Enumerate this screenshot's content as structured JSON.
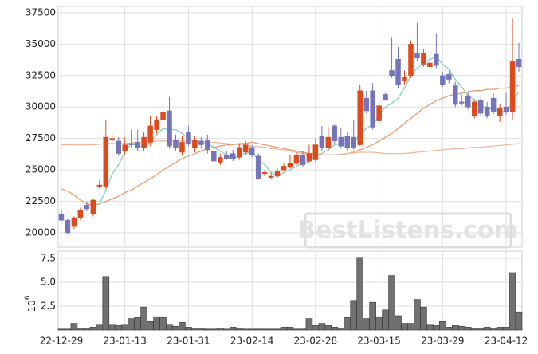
{
  "chart_data": {
    "type": "candlestick",
    "categories": [
      "22-12-29",
      null,
      null,
      null,
      null,
      null,
      null,
      null,
      null,
      null,
      "23-01-13",
      null,
      null,
      null,
      null,
      null,
      null,
      null,
      null,
      null,
      "23-01-31",
      null,
      null,
      null,
      null,
      null,
      null,
      null,
      null,
      null,
      "23-02-14",
      null,
      null,
      null,
      null,
      null,
      null,
      null,
      null,
      null,
      "23-02-28",
      null,
      null,
      null,
      null,
      null,
      null,
      null,
      null,
      null,
      "23-03-15",
      null,
      null,
      null,
      null,
      null,
      null,
      null,
      null,
      null,
      "23-03-29",
      null,
      null,
      null,
      null,
      null,
      null,
      null,
      null,
      null,
      "23-04-12",
      null,
      null
    ],
    "open": [
      21500,
      21000,
      20500,
      21200,
      22200,
      21500,
      23700,
      23700,
      27400,
      27300,
      26500,
      27100,
      27200,
      26800,
      27200,
      28200,
      29000,
      29700,
      27400,
      26400,
      28000,
      26800,
      27300,
      27400,
      26500,
      25600,
      26200,
      26300,
      26000,
      26400,
      26800,
      26100,
      24700,
      24400,
      24500,
      25000,
      25200,
      25500,
      26200,
      25700,
      25800,
      27700,
      26800,
      28500,
      27600,
      27700,
      27600,
      27000,
      30700,
      31300,
      28900,
      31000,
      32900,
      33800,
      32100,
      32500,
      34300,
      33400,
      33200,
      34200,
      32500,
      32600,
      31700,
      30400,
      30900,
      29300,
      30500,
      30000,
      30700,
      29300,
      30000,
      29600,
      33800
    ],
    "high": [
      21800,
      21100,
      21300,
      22000,
      22500,
      22700,
      24200,
      29000,
      27800,
      27600,
      27600,
      28200,
      28200,
      28000,
      29300,
      29300,
      30300,
      30800,
      27800,
      27700,
      28500,
      27700,
      27600,
      27800,
      26700,
      26300,
      26500,
      26600,
      27100,
      27300,
      27000,
      26300,
      25000,
      24800,
      25100,
      25500,
      26200,
      26400,
      26500,
      27000,
      27500,
      28500,
      28400,
      28600,
      28300,
      28000,
      29000,
      31800,
      31300,
      31900,
      30500,
      31100,
      35500,
      34800,
      32900,
      35300,
      36700,
      34600,
      34200,
      35800,
      32800,
      32900,
      32000,
      31000,
      31200,
      30600,
      30800,
      30400,
      31100,
      30200,
      31100,
      37100,
      35100
    ],
    "low": [
      20900,
      19900,
      20300,
      21000,
      21700,
      21300,
      23500,
      23500,
      27200,
      26100,
      26200,
      26800,
      26500,
      26500,
      26900,
      27900,
      28600,
      26700,
      26500,
      26200,
      26900,
      26400,
      26700,
      26300,
      25600,
      25400,
      25800,
      25700,
      25800,
      26200,
      26000,
      24200,
      24500,
      24300,
      24400,
      24900,
      25100,
      25400,
      25200,
      25500,
      25600,
      26500,
      26500,
      27100,
      26700,
      26500,
      26600,
      26900,
      29500,
      28200,
      28600,
      30500,
      32300,
      31500,
      31800,
      32300,
      33700,
      33200,
      32900,
      33100,
      31600,
      31900,
      30000,
      30100,
      29800,
      29100,
      29300,
      29100,
      29400,
      28800,
      29400,
      29000,
      32800
    ],
    "close": [
      21000,
      20000,
      21200,
      21800,
      21900,
      22600,
      23800,
      27600,
      27500,
      26300,
      27000,
      27000,
      26800,
      27600,
      28500,
      29000,
      29600,
      26900,
      26800,
      27200,
      27100,
      27400,
      27000,
      26600,
      25700,
      26000,
      25900,
      25900,
      26800,
      27000,
      26200,
      24300,
      24800,
      24500,
      24900,
      25300,
      25500,
      26200,
      25400,
      26300,
      27000,
      26800,
      27600,
      27300,
      26900,
      26800,
      26800,
      31300,
      29700,
      28400,
      30100,
      30600,
      32500,
      31800,
      32400,
      35000,
      33900,
      34300,
      33500,
      33300,
      31800,
      32200,
      30200,
      30300,
      30000,
      30400,
      29500,
      29300,
      29600,
      29900,
      29600,
      33600,
      33200
    ],
    "up_color": "#dd4b1c",
    "down_color": "#7474ba",
    "ma_series": [
      {
        "color": "#7fd3c3",
        "values": [
          null,
          null,
          null,
          null,
          null,
          null,
          22300,
          23400,
          24700,
          25400,
          26400,
          27100,
          26900,
          26900,
          27200,
          27800,
          28300,
          28200,
          28200,
          27900,
          27500,
          27100,
          27100,
          27100,
          26800,
          26500,
          26200,
          25900,
          26100,
          26300,
          26400,
          25800,
          25400,
          24800,
          24500,
          24800,
          25000,
          25300,
          25500,
          25700,
          26100,
          26300,
          26600,
          27000,
          27100,
          27100,
          27100,
          27900,
          28300,
          28600,
          29300,
          30000,
          30300,
          30700,
          31500,
          32500,
          33100,
          33500,
          33800,
          34000,
          33400,
          33000,
          32200,
          31600,
          30900,
          30600,
          30100,
          29900,
          29800,
          29700,
          29600,
          30400,
          31200
        ]
      },
      {
        "color": "#e89a6c",
        "values": [
          23500,
          23300,
          23000,
          22600,
          22300,
          22200,
          22300,
          22500,
          22700,
          22900,
          23200,
          23400,
          23700,
          24000,
          24300,
          24600,
          25000,
          25300,
          25600,
          25900,
          26100,
          26300,
          26500,
          26700,
          26800,
          26900,
          27000,
          27000,
          27100,
          27100,
          27200,
          27100,
          27000,
          26900,
          26800,
          26700,
          26600,
          26500,
          26400,
          26300,
          26300,
          26200,
          26200,
          26200,
          26200,
          26300,
          26400,
          26600,
          26800,
          27000,
          27300,
          27600,
          27900,
          28300,
          28700,
          29100,
          29500,
          29900,
          30200,
          30500,
          30700,
          30900,
          31000,
          31100,
          31200,
          31300,
          31300,
          31400,
          31400,
          31500,
          31500,
          31600,
          31700
        ]
      },
      {
        "color": "#f0b99a",
        "values": [
          27000,
          27000,
          27000,
          27000,
          27000,
          27000,
          27050,
          27100,
          27100,
          27100,
          27100,
          27150,
          27200,
          27200,
          27250,
          27300,
          27300,
          27300,
          27300,
          27300,
          27300,
          27300,
          27250,
          27200,
          27200,
          27150,
          27100,
          27050,
          27000,
          26950,
          26900,
          26850,
          26800,
          26700,
          26650,
          26600,
          26500,
          26400,
          26300,
          26250,
          26200,
          26200,
          26200,
          26200,
          26250,
          26300,
          26350,
          26400,
          26400,
          26400,
          26350,
          26300,
          26300,
          26300,
          26300,
          26350,
          26400,
          26450,
          26500,
          26550,
          26600,
          26650,
          26700,
          26700,
          26750,
          26800,
          26800,
          26850,
          26900,
          26950,
          27000,
          27050,
          27100
        ]
      }
    ],
    "ylim": [
      18860,
      38000
    ],
    "yticks": [
      20000,
      22500,
      25000,
      27500,
      30000,
      32500,
      35000,
      37500
    ],
    "grid": true,
    "volume": {
      "values": [
        0.1,
        0.1,
        0.7,
        0.2,
        0.2,
        0.3,
        0.6,
        5.6,
        0.6,
        0.5,
        0.6,
        1.2,
        1.3,
        2.4,
        0.9,
        1.4,
        1.3,
        0.6,
        0.4,
        0.8,
        0.3,
        0.2,
        0.2,
        0.1,
        0.1,
        0.2,
        0.1,
        0.3,
        0.2,
        0.1,
        0.1,
        0.1,
        0.1,
        0.1,
        0.1,
        0.3,
        0.3,
        0.1,
        0.1,
        1.2,
        0.5,
        0.7,
        0.5,
        0.3,
        0.2,
        1.3,
        3.1,
        7.6,
        1.2,
        2.9,
        1.4,
        2.1,
        5.7,
        1.5,
        0.7,
        0.7,
        3.2,
        2.4,
        0.6,
        0.5,
        0.9,
        0.3,
        0.5,
        0.4,
        0.3,
        0.2,
        0.2,
        0.3,
        0.2,
        0.3,
        0.3,
        6.0,
        1.9
      ],
      "color": "#707070",
      "ylim": [
        0,
        8.25
      ],
      "yticks": [
        2.5,
        {
          "value": 5,
          "label": "5.0"
        },
        7.5
      ],
      "axis_label": "10",
      "axis_label_exponent": "6"
    },
    "watermark": "BestListens.com"
  }
}
